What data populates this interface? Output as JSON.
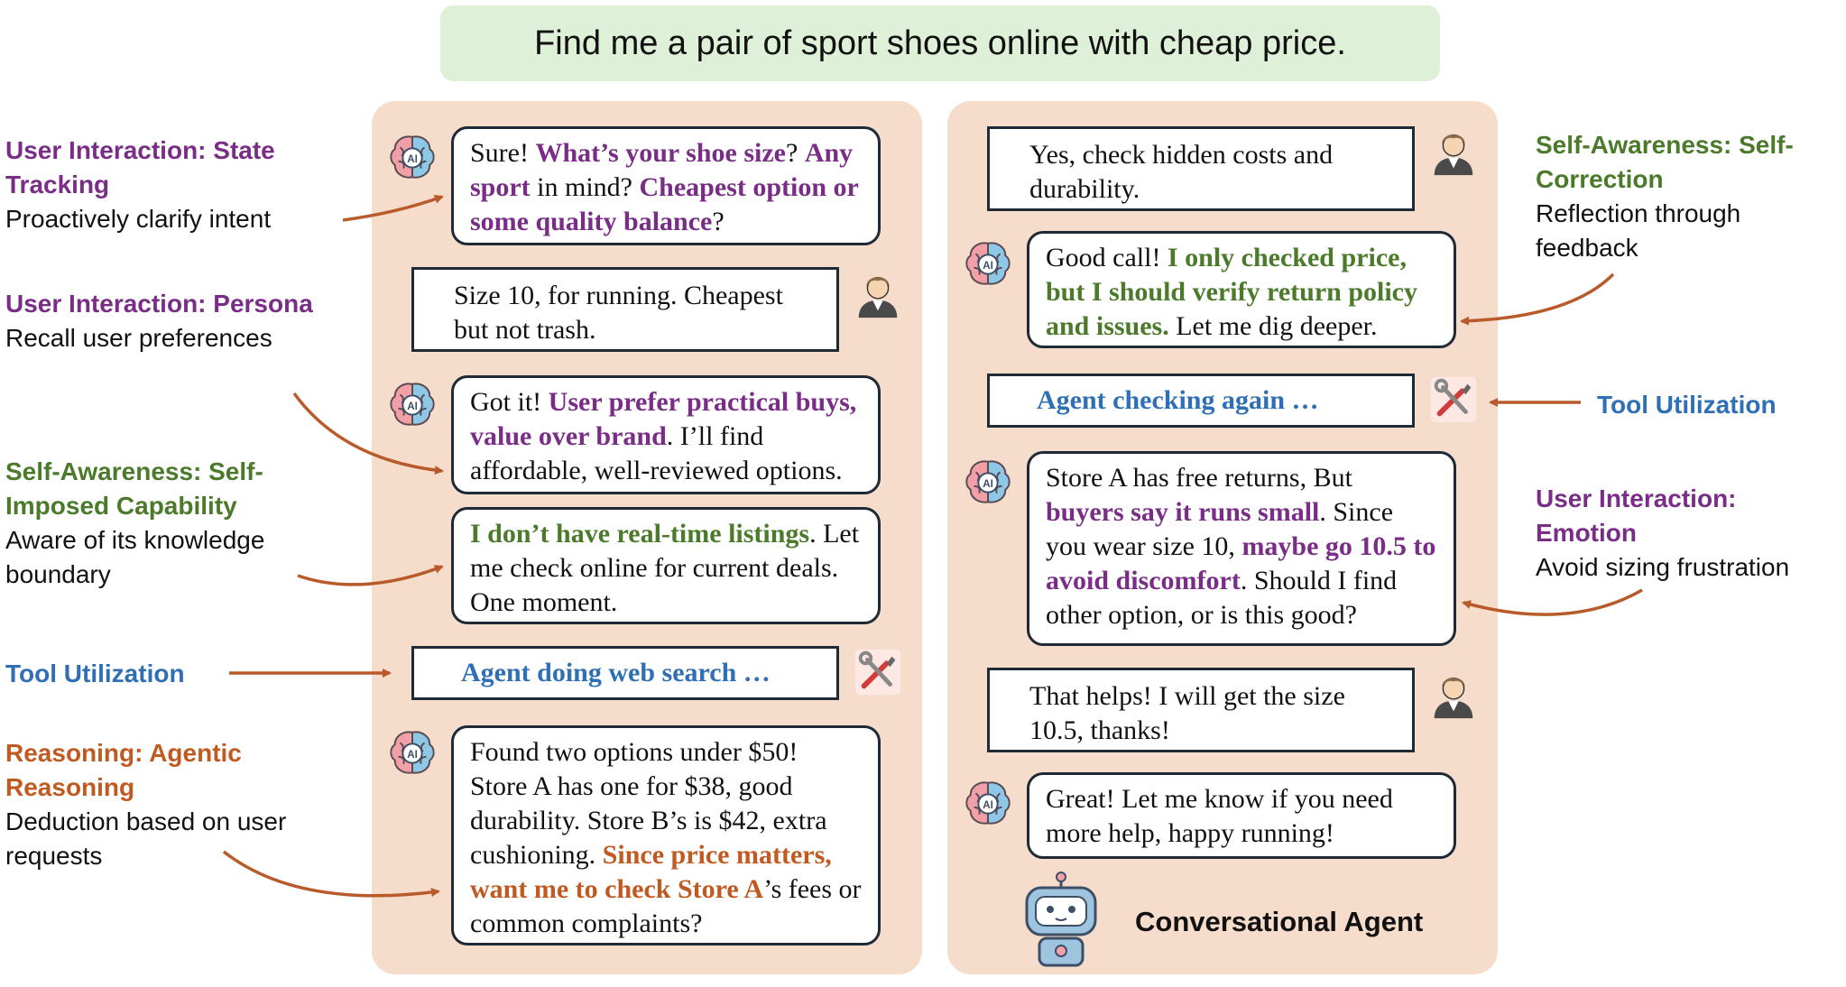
{
  "query": "Find me a pair of sport shoes online with cheap price.",
  "labels": {
    "state_tracking": {
      "head": "User Interaction: State Tracking",
      "desc": "Proactively clarify intent"
    },
    "persona": {
      "head": "User Interaction: Persona",
      "desc": "Recall user preferences"
    },
    "capability": {
      "head": "Self-Awareness: Self-Imposed Capability",
      "desc": "Aware of its knowledge boundary"
    },
    "tool_left": {
      "head": "Tool Utilization"
    },
    "reasoning": {
      "head": "Reasoning: Agentic Reasoning",
      "desc": "Deduction based on user requests"
    },
    "self_correction": {
      "head": "Self-Awareness: Self-Correction",
      "desc": "Reflection through feedback"
    },
    "tool_right": {
      "head": "Tool Utilization"
    },
    "emotion": {
      "head": "User Interaction: Emotion",
      "desc": "Avoid sizing frustration"
    }
  },
  "left_chat": {
    "b1": {
      "p1": "Sure! ",
      "h1": "What’s your shoe size",
      "p2": "? ",
      "h2": "Any sport",
      "p3": " in mind? ",
      "h3": "Cheapest option or some quality balance",
      "p4": "?"
    },
    "u1": "Size 10, for running. Cheapest but not trash.",
    "b2": {
      "p1": "Got it! ",
      "h1": "User prefer practical buys, value over brand",
      "p2": ". I’ll find affordable, well-reviewed options."
    },
    "b3": {
      "h1": "I don’t have real-time listings",
      "p1": ". Let me check online for current deals. One moment."
    },
    "tool": "Agent doing web search …",
    "b4": {
      "p1": "Found two options under $50! Store A has one for $38, good durability. Store B’s is $42, extra cushioning. ",
      "h1": "Since price matters, want me to check Store A",
      "p2": "’s fees or common complaints?"
    }
  },
  "right_chat": {
    "u1": "Yes, check hidden costs and durability.",
    "b1": {
      "p1": "Good call! ",
      "h1": "I only checked price, but I should verify return policy and issues.",
      "p2": " Let me dig deeper."
    },
    "tool": "Agent checking again …",
    "b2": {
      "p1": "Store A has free returns, But ",
      "h1": "buyers say it runs small",
      "p2": ". Since you wear size 10, ",
      "h2": "maybe go 10.5 to avoid discomfort",
      "p3": ". Should I find other option, or is this good?"
    },
    "u2": "That helps! I will get the size 10.5, thanks!",
    "b3": "Great! Let me know if you need more help, happy running!"
  },
  "agent_title": "Conversational Agent",
  "icons": [
    "ai-brain-icon",
    "user-avatar-icon",
    "tools-icon",
    "robot-icon"
  ],
  "colors": {
    "purple": "#7a2d87",
    "green": "#4a7a2a",
    "blue": "#2f6fb5",
    "orange": "#c05a21",
    "panel": "#f6dccb",
    "query_bg": "#dff0d8"
  }
}
